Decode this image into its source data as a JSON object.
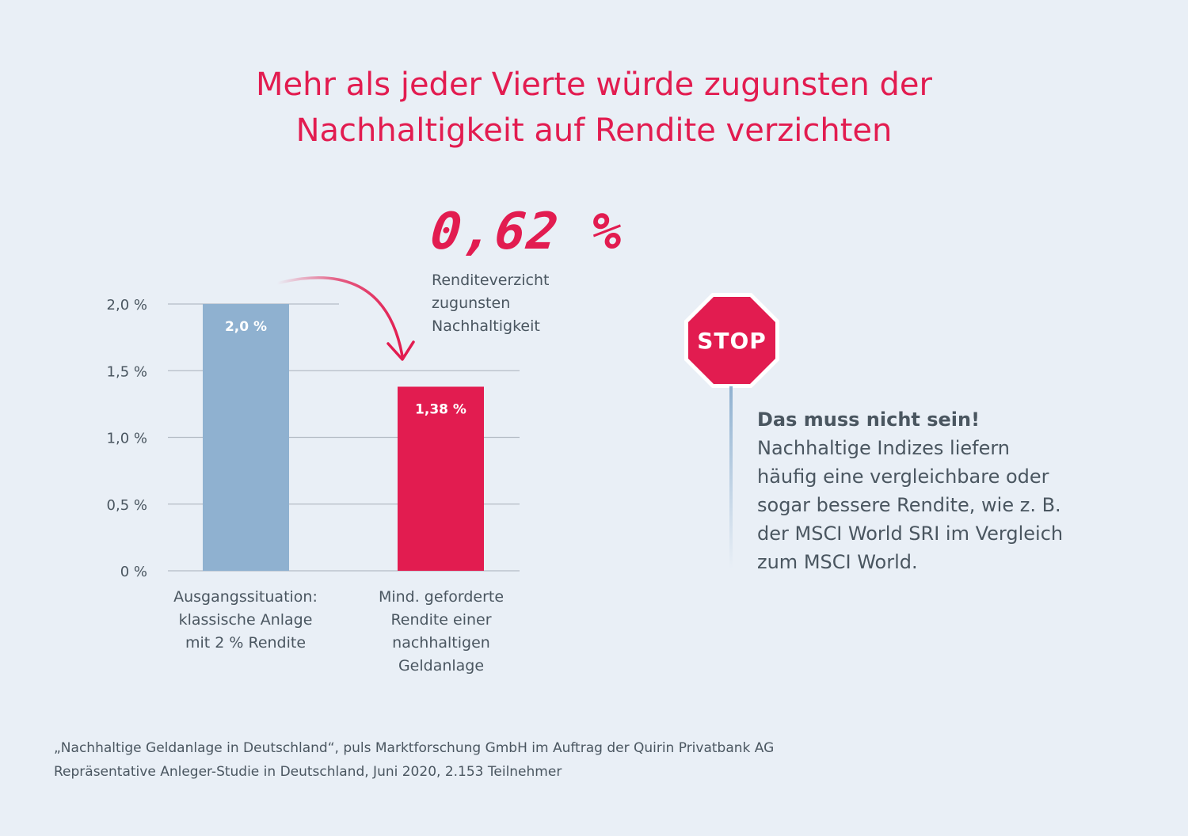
{
  "title": {
    "line1": "Mehr als jeder Vierte würde zugunsten der",
    "line2": "Nachhaltigkeit auf Rendite verzichten"
  },
  "chart_data": {
    "type": "bar",
    "categories": [
      "Ausgangssituation: klassische Anlage mit 2 % Rendite",
      "Mind. geforderte Rendite einer nachhaltigen Geldanlage"
    ],
    "category_lines": [
      [
        "Ausgangssituation:",
        "klassische Anlage",
        "mit 2 % Rendite"
      ],
      [
        "Mind. geforderte",
        "Rendite einer",
        "nachhaltigen",
        "Geldanlage"
      ]
    ],
    "values": [
      2.0,
      1.38
    ],
    "value_labels": [
      "2,0 %",
      "1,38 %"
    ],
    "bar_colors": [
      "#8fb1d0",
      "#e21c50"
    ],
    "yticks": [
      0,
      0.5,
      1.0,
      1.5,
      2.0
    ],
    "ytick_labels": [
      "0 %",
      "0,5 %",
      "1,0 %",
      "1,5 %",
      "2,0 %"
    ],
    "ylim": [
      0,
      2.0
    ],
    "grid": true,
    "xlabel": "",
    "ylabel": "",
    "annotation": {
      "value": "0,62 %",
      "caption_lines": [
        "Renditeverzicht",
        "zugunsten",
        "Nachhaltigkeit"
      ]
    }
  },
  "stop": {
    "sign_text": "STOP",
    "sign_color": "#e21c50",
    "heading": "Das muss nicht sein!",
    "body_lines": [
      "Nachhaltige Indizes liefern",
      "häufig eine vergleichbare oder",
      "sogar bessere Rendite, wie z. B.",
      "der MSCI World SRI im Vergleich",
      "zum MSCI World."
    ]
  },
  "source": {
    "line1": "„Nachhaltige Geldanlage in Deutschland“, puls Marktforschung GmbH im Auftrag der Quirin Privatbank AG",
    "line2": "Repräsentative Anleger-Studie in Deutschland, Juni 2020, 2.153 Teilnehmer"
  },
  "colors": {
    "accent": "#e21c50",
    "text": "#4a5660",
    "background": "#e9eff6",
    "bar_neutral": "#8fb1d0"
  }
}
